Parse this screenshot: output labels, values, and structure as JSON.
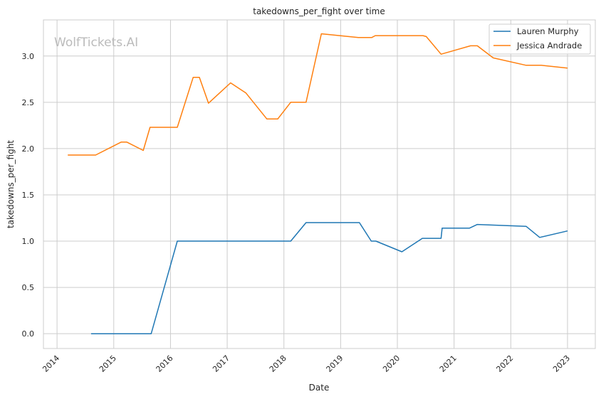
{
  "chart_data": {
    "type": "line",
    "title": "takedowns_per_fight over time",
    "xlabel": "Date",
    "ylabel": "takedowns_per_fight",
    "watermark": "WolfTickets.AI",
    "xlim": [
      2013.76,
      2023.49
    ],
    "ylim": [
      -0.16,
      3.39
    ],
    "x_ticks": [
      2014,
      2015,
      2016,
      2017,
      2018,
      2019,
      2020,
      2021,
      2022,
      2023
    ],
    "x_tick_labels": [
      "2014",
      "2015",
      "2016",
      "2017",
      "2018",
      "2019",
      "2020",
      "2021",
      "2022",
      "2023"
    ],
    "y_ticks": [
      0,
      0.5,
      1,
      1.5,
      2,
      2.5,
      3
    ],
    "y_tick_labels": [
      "0.0",
      "0.5",
      "1.0",
      "1.5",
      "2.0",
      "2.5",
      "3.0"
    ],
    "grid": true,
    "legend_position": "top-right",
    "series": [
      {
        "name": "Lauren Murphy",
        "color": "#1f77b4",
        "x": [
          2014.6,
          2015.66,
          2016.12,
          2016.38,
          2018.12,
          2018.39,
          2019.33,
          2019.54,
          2019.62,
          2020.08,
          2020.44,
          2020.77,
          2020.79,
          2021.27,
          2021.41,
          2022.27,
          2022.51,
          2023.0
        ],
        "y": [
          0,
          0,
          1.0,
          1.0,
          1.0,
          1.2,
          1.2,
          1.0,
          1.0,
          0.885,
          1.03,
          1.03,
          1.14,
          1.14,
          1.18,
          1.16,
          1.04,
          1.11
        ]
      },
      {
        "name": "Jessica Andrade",
        "color": "#ff7f0e",
        "x": [
          2014.19,
          2014.68,
          2015.13,
          2015.23,
          2015.52,
          2015.64,
          2016.12,
          2016.4,
          2016.51,
          2016.67,
          2017.06,
          2017.33,
          2017.7,
          2017.89,
          2018.12,
          2018.39,
          2018.66,
          2019.31,
          2019.55,
          2019.61,
          2020.45,
          2020.51,
          2020.77,
          2021.29,
          2021.41,
          2021.69,
          2022.27,
          2022.54,
          2023.0
        ],
        "y": [
          1.93,
          1.93,
          2.07,
          2.07,
          1.98,
          2.23,
          2.23,
          2.77,
          2.77,
          2.49,
          2.71,
          2.6,
          2.32,
          2.32,
          2.5,
          2.5,
          3.24,
          3.2,
          3.2,
          3.22,
          3.22,
          3.21,
          3.02,
          3.11,
          3.11,
          2.98,
          2.9,
          2.9,
          2.87
        ]
      }
    ]
  }
}
